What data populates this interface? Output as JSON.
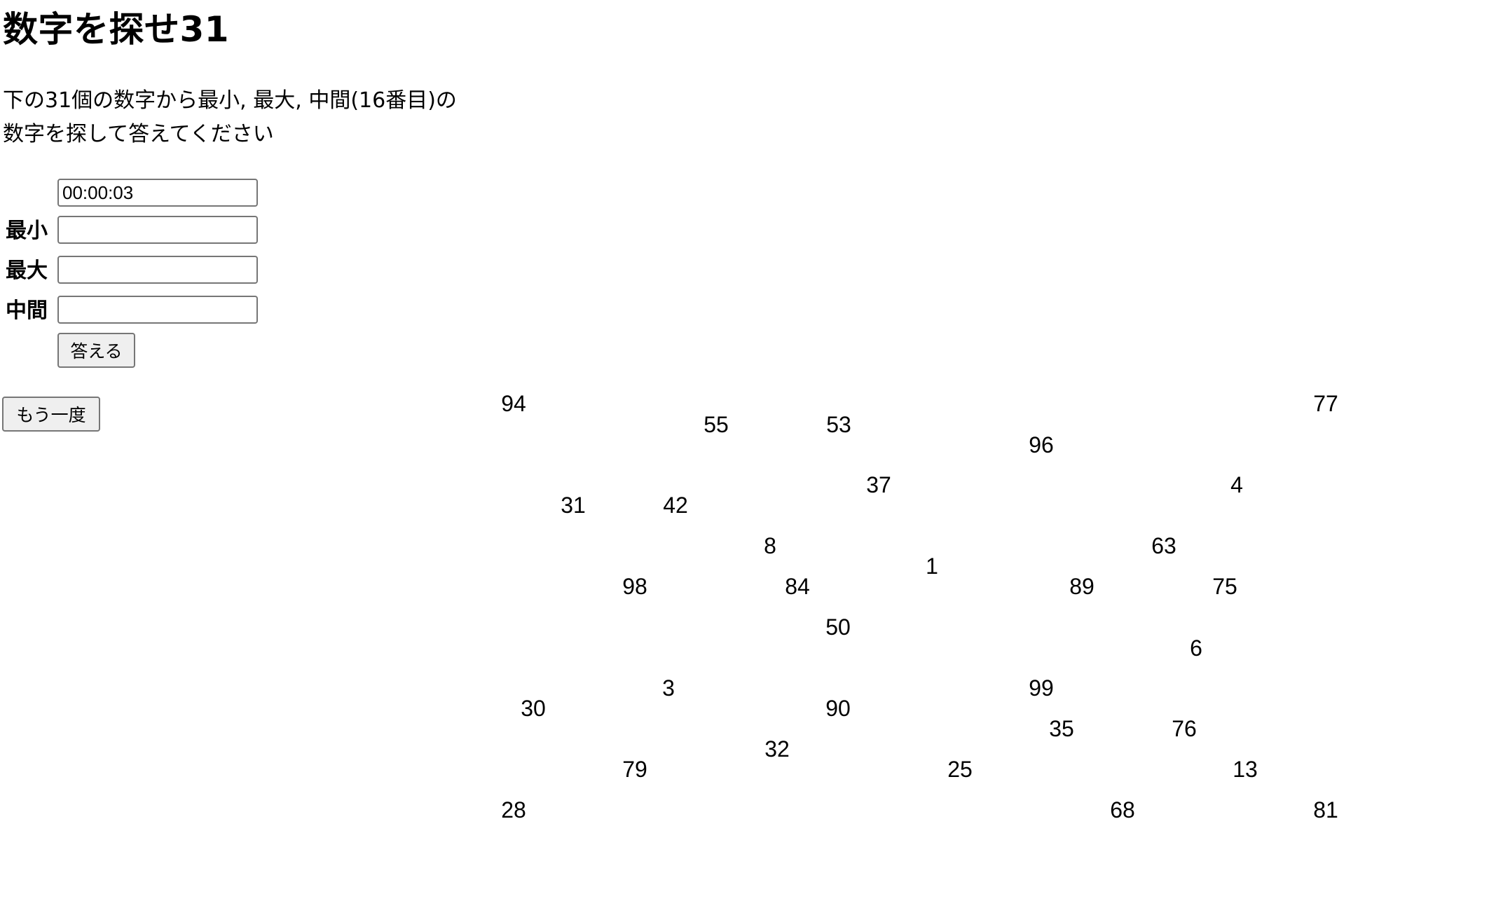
{
  "title": "数字を探せ31",
  "description": {
    "line1": "下の31個の数字から最小, 最大, 中間(16番目)の",
    "line2": "数字を探して答えてください"
  },
  "form": {
    "timer_value": "00:00:03",
    "min_label": "最小",
    "max_label": "最大",
    "mid_label": "中間",
    "min_value": "",
    "max_value": "",
    "mid_value": "",
    "answer_button": "答える"
  },
  "retry_button": "もう一度",
  "numbers": [
    "94",
    "55",
    "53",
    "77",
    "96",
    "37",
    "4",
    "31",
    "42",
    "8",
    "63",
    "1",
    "98",
    "84",
    "89",
    "75",
    "50",
    "6",
    "3",
    "99",
    "30",
    "90",
    "35",
    "76",
    "32",
    "79",
    "25",
    "13",
    "28",
    "68",
    "81"
  ]
}
